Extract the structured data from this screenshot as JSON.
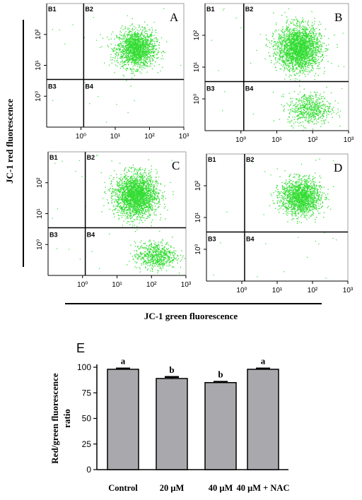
{
  "figure": {
    "y_axis_title": "JC-1 red fluorescence",
    "x_axis_title": "JC-1 green fluorescence"
  },
  "colors": {
    "dots": "#33dd33",
    "bar_fill": "#a9a9ad",
    "axis": "#000000"
  },
  "chart_data": [
    {
      "type": "scatter",
      "panel": "A",
      "scale": "log",
      "xlim": [
        0.1,
        1000
      ],
      "ylim": [
        0.1,
        1000
      ],
      "x_ticks": [
        "10⁰",
        "10¹",
        "10²",
        "10³"
      ],
      "y_ticks": [
        "10⁰",
        "10¹",
        "10²"
      ],
      "quadrants": [
        "B1",
        "B2",
        "B3",
        "B4"
      ],
      "gates": {
        "x": 1.2,
        "y": 3.5
      },
      "populations": [
        {
          "quadrant": "B2",
          "x_center": 40,
          "y_center": 35,
          "x_spread_decades": 0.28,
          "y_spread_decades": 0.3
        }
      ]
    },
    {
      "type": "scatter",
      "panel": "B",
      "scale": "log",
      "xlim": [
        0.1,
        1000
      ],
      "ylim": [
        0.1,
        1000
      ],
      "x_ticks": [
        "10⁰",
        "10¹",
        "10²",
        "10³"
      ],
      "y_ticks": [
        "10⁰",
        "10¹",
        "10²"
      ],
      "quadrants": [
        "B1",
        "B2",
        "B3",
        "B4"
      ],
      "gates": {
        "x": 1.2,
        "y": 3.5
      },
      "populations": [
        {
          "quadrant": "B2",
          "x_center": 40,
          "y_center": 40,
          "x_spread_decades": 0.3,
          "y_spread_decades": 0.35
        },
        {
          "quadrant": "B4",
          "x_center": 80,
          "y_center": 0.5,
          "x_spread_decades": 0.3,
          "y_spread_decades": 0.25
        }
      ]
    },
    {
      "type": "scatter",
      "panel": "C",
      "scale": "log",
      "xlim": [
        0.1,
        1000
      ],
      "ylim": [
        0.1,
        1000
      ],
      "x_ticks": [
        "10⁰",
        "10¹",
        "10²",
        "10³"
      ],
      "y_ticks": [
        "10⁰",
        "10¹",
        "10²"
      ],
      "quadrants": [
        "B1",
        "B2",
        "B3",
        "B4"
      ],
      "gates": {
        "x": 1.2,
        "y": 3.5
      },
      "populations": [
        {
          "quadrant": "B2",
          "x_center": 35,
          "y_center": 40,
          "x_spread_decades": 0.3,
          "y_spread_decades": 0.35
        },
        {
          "quadrant": "B4",
          "x_center": 130,
          "y_center": 0.45,
          "x_spread_decades": 0.3,
          "y_spread_decades": 0.22
        }
      ]
    },
    {
      "type": "scatter",
      "panel": "D",
      "scale": "log",
      "xlim": [
        0.1,
        1000
      ],
      "ylim": [
        0.1,
        1000
      ],
      "x_ticks": [
        "10⁰",
        "10¹",
        "10²",
        "10³"
      ],
      "y_ticks": [
        "10⁰",
        "10¹",
        "10²"
      ],
      "quadrants": [
        "B1",
        "B2",
        "B3",
        "B4"
      ],
      "gates": {
        "x": 1.2,
        "y": 3.5
      },
      "populations": [
        {
          "quadrant": "B2",
          "x_center": 45,
          "y_center": 45,
          "x_spread_decades": 0.28,
          "y_spread_decades": 0.28
        }
      ]
    },
    {
      "type": "bar",
      "panel": "E",
      "categories": [
        "Control",
        "20 μM",
        "40 μM",
        "40 μM + NAC"
      ],
      "values": [
        98,
        89,
        85,
        98
      ],
      "errors": [
        0.8,
        1.5,
        0.8,
        0.8
      ],
      "significance": [
        "a",
        "b",
        "b",
        "a"
      ],
      "ylabel": "Red/green fluorescence ratio",
      "ylim": [
        0,
        100
      ],
      "y_ticks": [
        "0",
        "25",
        "50",
        "75",
        "100"
      ],
      "grid": false
    }
  ]
}
